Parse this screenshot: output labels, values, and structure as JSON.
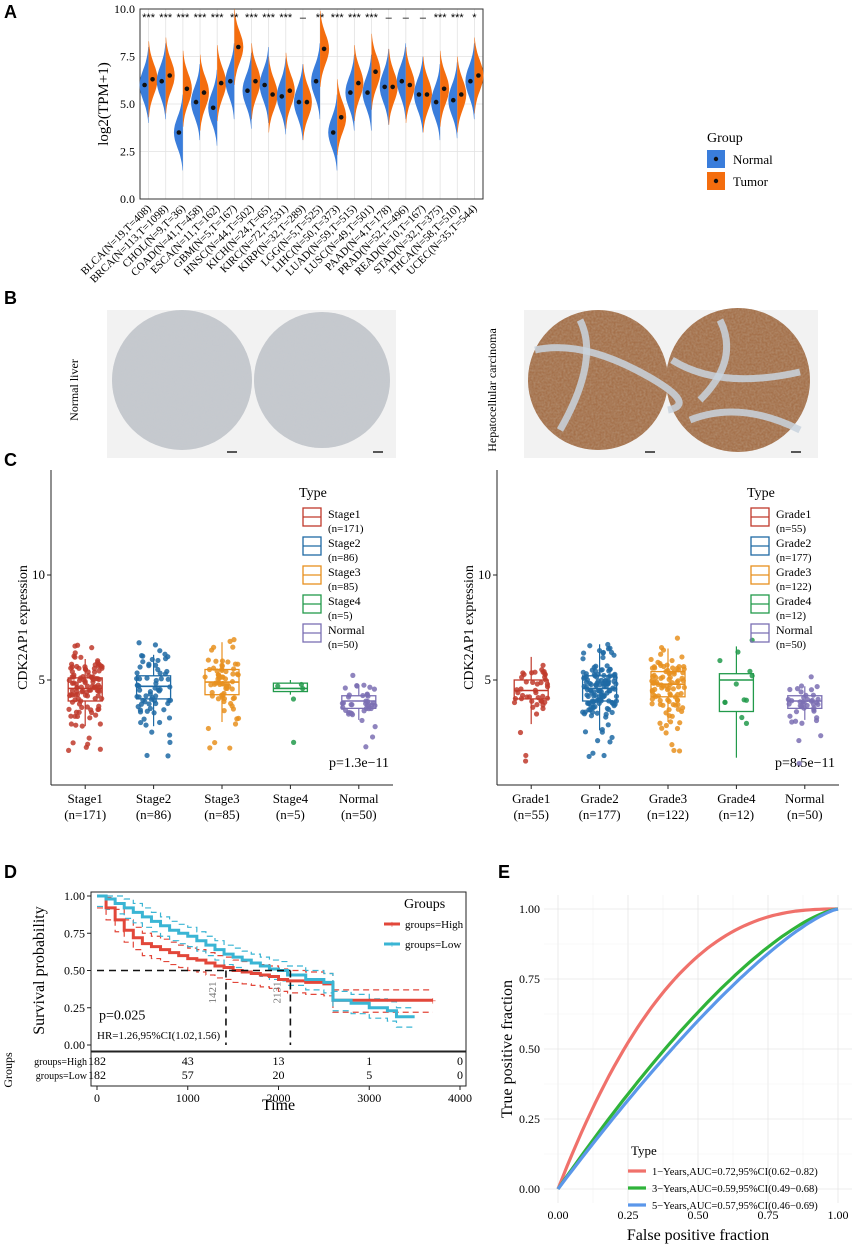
{
  "panel_letters": {
    "a": "A",
    "b": "B",
    "c": "C",
    "d": "D",
    "e": "E"
  },
  "colors": {
    "normal": "#3a7ddb",
    "tumor": "#f46d0e",
    "stage1": "#c0392b",
    "stage2": "#1f6aa5",
    "stage3": "#e8901e",
    "stage4": "#229a4b",
    "normal_box": "#7b6fb3",
    "high": "#e2473a",
    "low": "#3ab5d4",
    "roc1": "#f0716b",
    "roc3": "#2fb33a",
    "roc5": "#5b97ea",
    "tissue_normal": "#b3b7bb",
    "tissue_tumor": "#8a5a3a"
  },
  "chart_data": [
    {
      "id": "A",
      "type": "violin",
      "title": "",
      "ylabel": "log2(TPM+1)",
      "ylim": [
        0,
        10
      ],
      "yticks": [
        "0.0",
        "2.5",
        "5.0",
        "7.5",
        "10.0"
      ],
      "legend": {
        "title": "Group",
        "items": [
          "Normal",
          "Tumor"
        ]
      },
      "categories": [
        "BLCA(N=19,T=408)",
        "BRCA(N=113,T=1098)",
        "CHOL(N=9,T=36)",
        "COAD(N=41,T=458)",
        "ESCA(N=11,T=162)",
        "GBM(N=5,T=167)",
        "HNSC(N=44,T=502)",
        "KICH(N=24,T=65)",
        "KIRC(N=72,T=531)",
        "KIRP(N=32,T=289)",
        "LGG(N=5,T=525)",
        "LIHC(N=50,T=373)",
        "LUAD(N=59,T=515)",
        "LUSC(N=49,T=501)",
        "PAAD(N=4,T=178)",
        "PRAD(N=52,T=496)",
        "READ(N=10,T=167)",
        "STAD(N=32,T=375)",
        "THCA(N=58,T=510)",
        "UCEC(N=35,T=544)"
      ],
      "significance": [
        "***",
        "***",
        "***",
        "***",
        "***",
        "**",
        "***",
        "***",
        "***",
        "–",
        "**",
        "***",
        "***",
        "***",
        "–",
        "–",
        "–",
        "***",
        "***",
        "*"
      ],
      "series": [
        {
          "name": "Normal",
          "values": [
            6.0,
            6.2,
            3.5,
            5.1,
            4.8,
            6.2,
            5.7,
            6.0,
            5.4,
            5.1,
            6.2,
            3.5,
            5.6,
            5.6,
            5.9,
            6.2,
            5.5,
            5.1,
            5.2,
            6.2
          ]
        },
        {
          "name": "Tumor",
          "values": [
            6.3,
            6.5,
            5.8,
            5.6,
            6.1,
            8.0,
            6.2,
            5.5,
            5.7,
            5.1,
            7.9,
            4.3,
            6.1,
            6.7,
            5.9,
            6.0,
            5.5,
            5.8,
            5.5,
            6.5
          ]
        }
      ]
    },
    {
      "id": "B",
      "type": "image",
      "labels": {
        "normal": "Normal liver",
        "tumor": "Hepatocellular carcinoma"
      }
    },
    {
      "id": "C1",
      "type": "box",
      "ylabel": "CDK2AP1 expression",
      "ylim": [
        0,
        15
      ],
      "yticks": [
        "5",
        "10"
      ],
      "legend_title": "Type",
      "categories": [
        "Stage1",
        "Stage2",
        "Stage3",
        "Stage4",
        "Normal"
      ],
      "counts": [
        "(n=171)",
        "(n=86)",
        "(n=85)",
        "(n=5)",
        "(n=50)"
      ],
      "medians": [
        4.6,
        4.7,
        4.9,
        4.6,
        4.0
      ],
      "q1": [
        4.0,
        4.1,
        4.3,
        4.45,
        3.65
      ],
      "q3": [
        5.1,
        5.2,
        5.5,
        4.85,
        4.25
      ],
      "whisker_low": [
        2.8,
        2.8,
        3.0,
        4.3,
        3.1
      ],
      "whisker_high": [
        6.0,
        6.2,
        6.8,
        5.0,
        4.7
      ],
      "pvalue": "p=1.3e−11"
    },
    {
      "id": "C2",
      "type": "box",
      "ylabel": "CDK2AP1 expression",
      "ylim": [
        0,
        15
      ],
      "yticks": [
        "5",
        "10"
      ],
      "legend_title": "Type",
      "categories": [
        "Grade1",
        "Grade2",
        "Grade3",
        "Grade4",
        "Normal"
      ],
      "counts": [
        "(n=55)",
        "(n=177)",
        "(n=122)",
        "(n=12)",
        "(n=50)"
      ],
      "medians": [
        4.5,
        4.6,
        4.8,
        5.0,
        4.0
      ],
      "q1": [
        4.1,
        4.0,
        4.2,
        3.5,
        3.65
      ],
      "q3": [
        5.0,
        5.2,
        5.4,
        5.3,
        4.25
      ],
      "whisker_low": [
        2.9,
        2.6,
        3.0,
        1.3,
        3.1
      ],
      "whisker_high": [
        6.1,
        6.7,
        6.5,
        6.6,
        4.7
      ],
      "pvalue": "p=8.5e−11"
    },
    {
      "id": "D",
      "type": "line",
      "title": "",
      "xlabel": "Time",
      "ylabel": "Survival probability",
      "xlim": [
        0,
        4000
      ],
      "ylim": [
        0,
        1
      ],
      "xticks": [
        "0",
        "1000",
        "2000",
        "3000",
        "4000"
      ],
      "yticks": [
        "0.00",
        "0.25",
        "0.50",
        "0.75",
        "1.00"
      ],
      "legend": {
        "title": "Groups",
        "items": [
          "groups=High",
          "groups=Low"
        ]
      },
      "pvalue": "p=0.025",
      "hr": "HR=1.26,95%CI(1.02,1.56)",
      "median_labels": [
        "1421",
        "2131"
      ],
      "series": [
        {
          "name": "groups=High",
          "x": [
            0,
            100,
            200,
            300,
            400,
            500,
            600,
            700,
            800,
            900,
            1000,
            1100,
            1200,
            1300,
            1400,
            1500,
            1600,
            1700,
            1800,
            1900,
            2000,
            2100,
            2300,
            2500,
            2600,
            3600,
            3700
          ],
          "y": [
            1.0,
            0.92,
            0.84,
            0.77,
            0.72,
            0.68,
            0.66,
            0.64,
            0.62,
            0.6,
            0.58,
            0.57,
            0.55,
            0.53,
            0.52,
            0.5,
            0.49,
            0.48,
            0.47,
            0.46,
            0.44,
            0.43,
            0.42,
            0.41,
            0.3,
            0.3,
            0.3
          ]
        },
        {
          "name": "groups=Low",
          "x": [
            0,
            100,
            200,
            300,
            400,
            500,
            600,
            700,
            800,
            900,
            1000,
            1100,
            1200,
            1300,
            1400,
            1500,
            1600,
            1700,
            1800,
            1900,
            2000,
            2100,
            2300,
            2500,
            2600,
            2800,
            3000,
            3200,
            3300,
            3500
          ],
          "y": [
            1.0,
            0.98,
            0.95,
            0.92,
            0.89,
            0.86,
            0.83,
            0.8,
            0.77,
            0.75,
            0.73,
            0.7,
            0.67,
            0.64,
            0.61,
            0.59,
            0.57,
            0.55,
            0.53,
            0.51,
            0.5,
            0.47,
            0.44,
            0.42,
            0.3,
            0.28,
            0.25,
            0.23,
            0.19,
            0.19
          ]
        }
      ],
      "risk_table": {
        "label": "Groups",
        "rows": [
          {
            "name": "groups=High",
            "counts": [
              "182",
              "43",
              "13",
              "1",
              "0"
            ]
          },
          {
            "name": "groups=Low",
            "counts": [
              "182",
              "57",
              "20",
              "5",
              "0"
            ]
          }
        ]
      }
    },
    {
      "id": "E",
      "type": "line",
      "xlabel": "False positive fraction",
      "ylabel": "True positive fraction",
      "xlim": [
        0,
        1
      ],
      "ylim": [
        0,
        1
      ],
      "xticks": [
        "0.00",
        "0.25",
        "0.50",
        "0.75",
        "1.00"
      ],
      "yticks": [
        "0.00",
        "0.25",
        "0.50",
        "0.75",
        "1.00"
      ],
      "legend": {
        "title": "Type",
        "items": [
          "1−Years,AUC=0.72,95%CI(0.62−0.82)",
          "3−Years,AUC=0.59,95%CI(0.49−0.68)",
          "5−Years,AUC=0.57,95%CI(0.46−0.69)"
        ]
      },
      "series": [
        {
          "name": "1−Years",
          "auc": 0.72
        },
        {
          "name": "3−Years",
          "auc": 0.59
        },
        {
          "name": "5−Years",
          "auc": 0.57
        }
      ]
    }
  ]
}
